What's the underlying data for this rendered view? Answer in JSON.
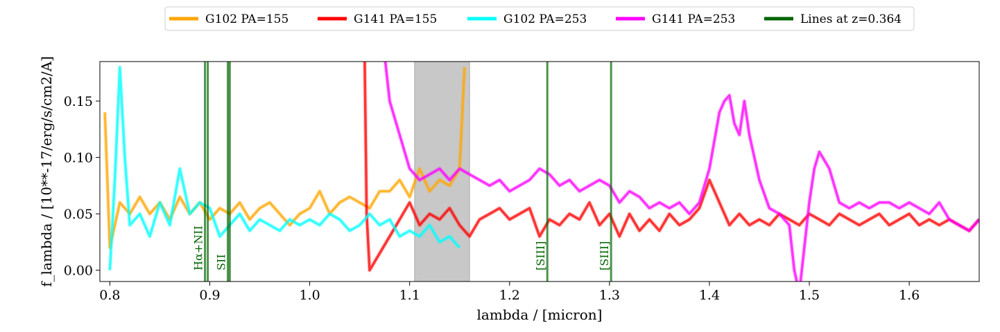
{
  "chart_data": {
    "type": "line",
    "title": "",
    "xlabel": "lambda / [micron]",
    "ylabel": "f_lambda / [10**-17/erg/s/cm2/A]",
    "xlim": [
      0.79,
      1.67
    ],
    "ylim": [
      -0.01,
      0.185
    ],
    "x_ticks": [
      {
        "value": 0.8,
        "label": "0.8"
      },
      {
        "value": 0.9,
        "label": "0.9"
      },
      {
        "value": 1.0,
        "label": "1.0"
      },
      {
        "value": 1.1,
        "label": "1.1"
      },
      {
        "value": 1.2,
        "label": "1.2"
      },
      {
        "value": 1.3,
        "label": "1.3"
      },
      {
        "value": 1.4,
        "label": "1.4"
      },
      {
        "value": 1.5,
        "label": "1.5"
      },
      {
        "value": 1.6,
        "label": "1.6"
      }
    ],
    "y_ticks": [
      {
        "value": 0.0,
        "label": "0.00"
      },
      {
        "value": 0.05,
        "label": "0.05"
      },
      {
        "value": 0.1,
        "label": "0.10"
      },
      {
        "value": 0.15,
        "label": "0.15"
      }
    ],
    "grid": false,
    "legend_position": "top-center, outside",
    "shaded_region": {
      "x0": 1.105,
      "x1": 1.16,
      "color": "#c8c8c8"
    },
    "series": [
      {
        "name": "G102 PA=155",
        "color": "#ffa500",
        "x": [
          0.795,
          0.8,
          0.81,
          0.82,
          0.83,
          0.84,
          0.85,
          0.86,
          0.87,
          0.88,
          0.89,
          0.9,
          0.91,
          0.92,
          0.93,
          0.94,
          0.95,
          0.96,
          0.97,
          0.98,
          0.99,
          1.0,
          1.01,
          1.02,
          1.03,
          1.04,
          1.05,
          1.06,
          1.07,
          1.08,
          1.09,
          1.1,
          1.11,
          1.12,
          1.13,
          1.14,
          1.15,
          1.155
        ],
        "y": [
          0.14,
          0.02,
          0.06,
          0.05,
          0.065,
          0.05,
          0.06,
          0.045,
          0.065,
          0.05,
          0.06,
          0.045,
          0.055,
          0.05,
          0.06,
          0.045,
          0.055,
          0.06,
          0.05,
          0.04,
          0.05,
          0.055,
          0.07,
          0.05,
          0.06,
          0.065,
          0.06,
          0.055,
          0.07,
          0.07,
          0.08,
          0.065,
          0.09,
          0.07,
          0.08,
          0.075,
          0.09,
          0.18
        ]
      },
      {
        "name": "G141 PA=155",
        "color": "#ff0000",
        "x": [
          1.055,
          1.057,
          1.06,
          1.08,
          1.09,
          1.1,
          1.11,
          1.12,
          1.13,
          1.14,
          1.15,
          1.16,
          1.17,
          1.18,
          1.19,
          1.2,
          1.21,
          1.22,
          1.23,
          1.24,
          1.25,
          1.26,
          1.27,
          1.28,
          1.29,
          1.3,
          1.31,
          1.32,
          1.33,
          1.34,
          1.35,
          1.36,
          1.37,
          1.38,
          1.39,
          1.4,
          1.41,
          1.42,
          1.43,
          1.44,
          1.45,
          1.46,
          1.47,
          1.48,
          1.49,
          1.5,
          1.51,
          1.52,
          1.53,
          1.54,
          1.55,
          1.56,
          1.57,
          1.58,
          1.59,
          1.6,
          1.61,
          1.62,
          1.63,
          1.64,
          1.65,
          1.66,
          1.67
        ],
        "y": [
          0.19,
          0.05,
          0.0,
          0.03,
          0.045,
          0.06,
          0.04,
          0.05,
          0.045,
          0.055,
          0.04,
          0.03,
          0.045,
          0.05,
          0.055,
          0.045,
          0.05,
          0.055,
          0.03,
          0.045,
          0.04,
          0.05,
          0.045,
          0.06,
          0.04,
          0.05,
          0.03,
          0.05,
          0.035,
          0.045,
          0.035,
          0.05,
          0.04,
          0.045,
          0.055,
          0.08,
          0.06,
          0.04,
          0.05,
          0.04,
          0.045,
          0.04,
          0.05,
          0.045,
          0.04,
          0.05,
          0.045,
          0.04,
          0.05,
          0.045,
          0.04,
          0.045,
          0.05,
          0.04,
          0.045,
          0.05,
          0.04,
          0.045,
          0.04,
          0.045,
          0.04,
          0.035,
          0.045
        ]
      },
      {
        "name": "G102 PA=253",
        "color": "#00ffff",
        "x": [
          0.8,
          0.805,
          0.81,
          0.815,
          0.82,
          0.83,
          0.84,
          0.85,
          0.86,
          0.87,
          0.88,
          0.89,
          0.9,
          0.91,
          0.92,
          0.93,
          0.94,
          0.95,
          0.96,
          0.97,
          0.98,
          0.99,
          1.0,
          1.01,
          1.02,
          1.03,
          1.04,
          1.05,
          1.06,
          1.07,
          1.08,
          1.09,
          1.1,
          1.11,
          1.12,
          1.13,
          1.14,
          1.15
        ],
        "y": [
          0.0,
          0.08,
          0.18,
          0.1,
          0.04,
          0.05,
          0.03,
          0.06,
          0.04,
          0.09,
          0.05,
          0.06,
          0.055,
          0.03,
          0.04,
          0.05,
          0.035,
          0.045,
          0.04,
          0.035,
          0.045,
          0.04,
          0.045,
          0.04,
          0.05,
          0.045,
          0.035,
          0.04,
          0.05,
          0.04,
          0.045,
          0.03,
          0.035,
          0.03,
          0.04,
          0.025,
          0.03,
          0.02
        ]
      },
      {
        "name": "G141 PA=253",
        "color": "#ff00ff",
        "x": [
          1.075,
          1.08,
          1.09,
          1.1,
          1.11,
          1.12,
          1.13,
          1.14,
          1.15,
          1.16,
          1.17,
          1.18,
          1.19,
          1.2,
          1.21,
          1.22,
          1.23,
          1.24,
          1.25,
          1.26,
          1.27,
          1.28,
          1.29,
          1.3,
          1.31,
          1.32,
          1.33,
          1.34,
          1.35,
          1.36,
          1.37,
          1.38,
          1.39,
          1.4,
          1.41,
          1.415,
          1.42,
          1.425,
          1.43,
          1.435,
          1.44,
          1.45,
          1.46,
          1.47,
          1.48,
          1.485,
          1.49,
          1.5,
          1.505,
          1.51,
          1.52,
          1.53,
          1.54,
          1.55,
          1.56,
          1.57,
          1.58,
          1.59,
          1.6,
          1.61,
          1.62,
          1.63,
          1.64,
          1.65,
          1.66,
          1.67
        ],
        "y": [
          0.19,
          0.15,
          0.12,
          0.09,
          0.08,
          0.085,
          0.09,
          0.08,
          0.09,
          0.085,
          0.08,
          0.075,
          0.08,
          0.07,
          0.075,
          0.08,
          0.09,
          0.085,
          0.075,
          0.08,
          0.07,
          0.075,
          0.08,
          0.075,
          0.06,
          0.07,
          0.065,
          0.055,
          0.06,
          0.055,
          0.06,
          0.05,
          0.06,
          0.09,
          0.14,
          0.15,
          0.155,
          0.13,
          0.12,
          0.15,
          0.12,
          0.08,
          0.055,
          0.05,
          0.04,
          0.0,
          -0.02,
          0.06,
          0.09,
          0.105,
          0.09,
          0.06,
          0.055,
          0.06,
          0.055,
          0.06,
          0.06,
          0.055,
          0.06,
          0.055,
          0.05,
          0.06,
          0.045,
          0.04,
          0.035,
          0.045
        ]
      }
    ],
    "vertical_lines": {
      "legend_name": "Lines at z=0.364",
      "color": "#006400",
      "lines": [
        {
          "x": 0.8952,
          "label": "Hα+NII"
        },
        {
          "x": 0.898,
          "label": ""
        },
        {
          "x": 0.9181,
          "label": "SII"
        },
        {
          "x": 0.92,
          "label": ""
        },
        {
          "x": 1.2378,
          "label": "[SIII]"
        },
        {
          "x": 1.3016,
          "label": "[SIII]"
        }
      ]
    }
  }
}
